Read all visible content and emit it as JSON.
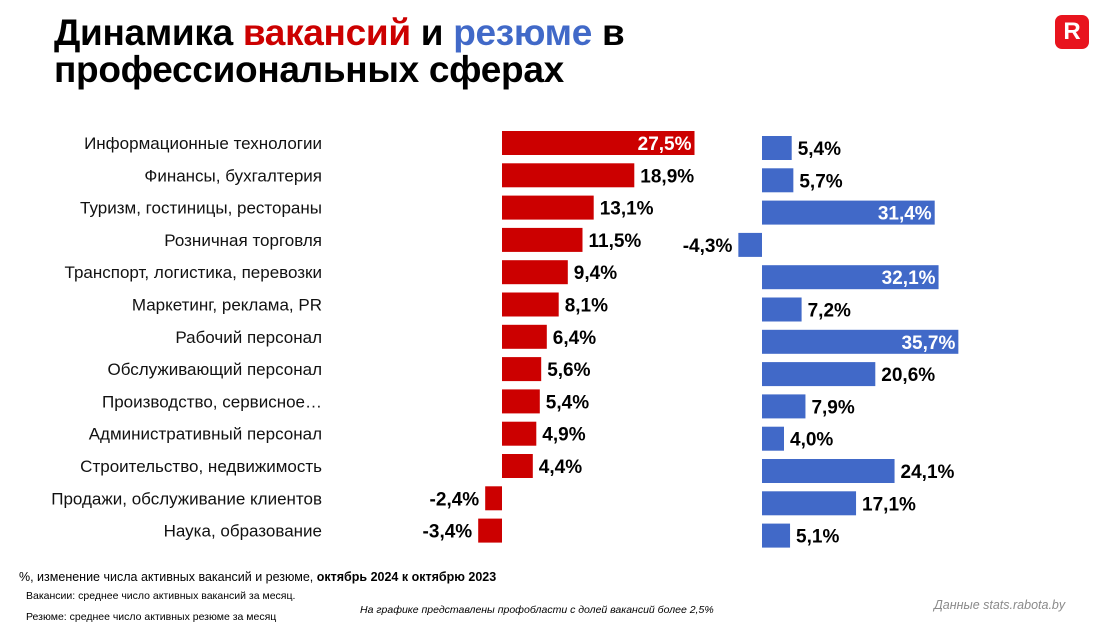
{
  "header": {
    "title_part1": "Динамика ",
    "title_vacancies": "вакансий",
    "title_and": " и ",
    "title_resumes": "резюме",
    "title_in": " в",
    "title_line2": "профессиональных сферах"
  },
  "logo": {
    "letter": "R",
    "color": "#e8141e"
  },
  "colors": {
    "vacancies": "#cc0000",
    "resumes": "#4169c8"
  },
  "chart_data": {
    "type": "bar",
    "orientation": "horizontal",
    "categories": [
      "Информационные технологии",
      "Финансы, бухгалтерия",
      "Туризм, гостиницы, рестораны",
      "Розничная торговля",
      "Транспорт, логистика, перевозки",
      "Маркетинг, реклама, PR",
      "Рабочий персонал",
      "Обслуживающий персонал",
      "Производство, сервисное…",
      "Административный персонал",
      "Строительство, недвижимость",
      "Продажи, обслуживание клиентов",
      "Наука, образование"
    ],
    "series": [
      {
        "name": "вакансий",
        "values": [
          27.5,
          18.9,
          13.1,
          11.5,
          9.4,
          8.1,
          6.4,
          5.6,
          5.4,
          4.9,
          4.4,
          -2.4,
          -3.4
        ],
        "labels": [
          "27,5%",
          "18,9%",
          "13,1%",
          "11,5%",
          "9,4%",
          "8,1%",
          "6,4%",
          "5,6%",
          "5,4%",
          "4,9%",
          "4,4%",
          "-2,4%",
          "-3,4%"
        ]
      },
      {
        "name": "резюме",
        "values": [
          5.4,
          5.7,
          31.4,
          -4.3,
          32.1,
          7.2,
          35.7,
          20.6,
          7.9,
          4.0,
          24.1,
          17.1,
          5.1
        ],
        "labels": [
          "5,4%",
          "5,7%",
          "31,4%",
          "-4,3%",
          "32,1%",
          "7,2%",
          "35,7%",
          "20,6%",
          "7,9%",
          "4,0%",
          "24,1%",
          "17,1%",
          "5,1%"
        ]
      }
    ],
    "units": "%"
  },
  "footer": {
    "note_main": "%, изменение числа активных вакансий и резюме, ",
    "note_period": "октябрь 2024 к октябрю 2023",
    "note_vacancies": "Вакансии: среднее число активных вакансий за месяц.",
    "note_resumes": "Резюме: среднее число активных резюме за месяц",
    "note_share": "На графике представлены профобласти с долей вакансий более 2,5%",
    "source": "Данные stats.rabota.by"
  }
}
